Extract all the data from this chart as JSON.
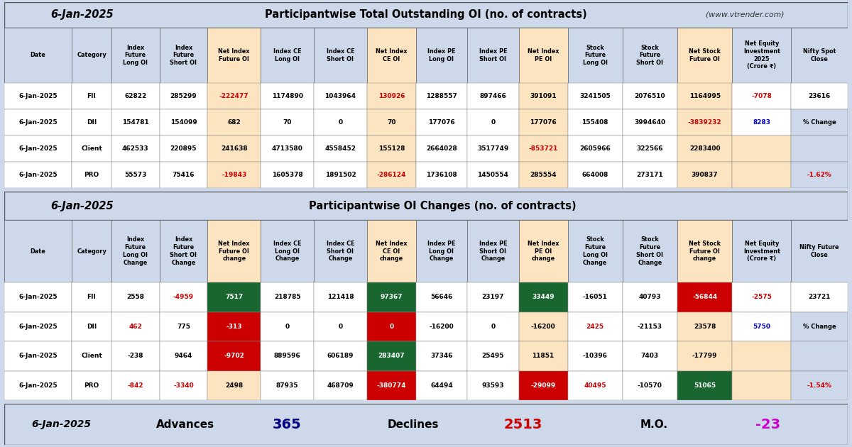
{
  "title1_date": "6-Jan-2025",
  "title1_main": "Participantwise Total Outstanding OI (no. of contracts)",
  "title1_website": "  (www.vtrender.com)",
  "title2_date": "6-Jan-2025",
  "title2_main": "Participantwise OI Changes (no. of contracts)",
  "footer_date": "6-Jan-2025",
  "footer_advances_label": "Advances",
  "footer_advances_val": "365",
  "footer_declines_label": "Declines",
  "footer_declines_val": "2513",
  "footer_mo_label": "M.O.",
  "footer_mo_val": "-23",
  "bg_color": "#cdd9ea",
  "white": "#ffffff",
  "net_col_bg": "#fce4c0",
  "negative_color": "#cc0000",
  "blue_color": "#0000cc",
  "magenta_color": "#cc00cc",
  "green_bg": "#1a6630",
  "red_bg": "#cc0000",
  "dark_navy": "#000080",
  "table1_headers": [
    "Date",
    "Category",
    "Index\nFuture\nLong OI",
    "Index\nFuture\nShort OI",
    "Net Index\nFuture OI",
    "Index CE\nLong OI",
    "Index CE\nShort OI",
    "Net Index\nCE OI",
    "Index PE\nLong OI",
    "Index PE\nShort OI",
    "Net Index\nPE OI",
    "Stock\nFuture\nLong OI",
    "Stock\nFuture\nShort OI",
    "Net Stock\nFuture OI",
    "Net Equity\nInvestment\n2025\n(Crore ₹)",
    "Nifty Spot\nClose"
  ],
  "table1_data": [
    [
      "6-Jan-2025",
      "FII",
      "62822",
      "285299",
      "-222477",
      "1174890",
      "1043964",
      "130926",
      "1288557",
      "897466",
      "391091",
      "3241505",
      "2076510",
      "1164995",
      "-7078",
      "23616"
    ],
    [
      "6-Jan-2025",
      "DII",
      "154781",
      "154099",
      "682",
      "70",
      "0",
      "70",
      "177076",
      "0",
      "177076",
      "155408",
      "3994640",
      "-3839232",
      "8283",
      ""
    ],
    [
      "6-Jan-2025",
      "Client",
      "462533",
      "220895",
      "241638",
      "4713580",
      "4558452",
      "155128",
      "2664028",
      "3517749",
      "-853721",
      "2605966",
      "322566",
      "2283400",
      "",
      ""
    ],
    [
      "6-Jan-2025",
      "PRO",
      "55573",
      "75416",
      "-19843",
      "1605378",
      "1891502",
      "-286124",
      "1736108",
      "1450554",
      "285554",
      "664008",
      "273171",
      "390837",
      "",
      ""
    ]
  ],
  "table1_net_cols": [
    4,
    7,
    10,
    13
  ],
  "table1_neg_text": [
    [
      0,
      4
    ],
    [
      3,
      4
    ],
    [
      0,
      7
    ],
    [
      3,
      7
    ],
    [
      2,
      10
    ],
    [
      0,
      14
    ],
    [
      1,
      13
    ]
  ],
  "table1_blue_text": [
    [
      1,
      14
    ]
  ],
  "table1_pct_val": "-1.62%",
  "table2_headers": [
    "Date",
    "Category",
    "Index\nFuture\nLong OI\nChange",
    "Index\nFuture\nShort OI\nChange",
    "Net Index\nFuture OI\nchange",
    "Index CE\nLong OI\nChange",
    "Index CE\nShort OI\nChange",
    "Net Index\nCE OI\nchange",
    "Index PE\nLong OI\nChange",
    "Index PE\nShort OI\nChange",
    "Net Index\nPE OI\nchange",
    "Stock\nFuture\nLong OI\nChange",
    "Stock\nFuture\nShort OI\nChange",
    "Net Stock\nFuture OI\nchange",
    "Net Equity\nInvestment\n(Crore ₹)",
    "Nifty Future\nClose"
  ],
  "table2_data": [
    [
      "6-Jan-2025",
      "FII",
      "2558",
      "-4959",
      "7517",
      "218785",
      "121418",
      "97367",
      "56646",
      "23197",
      "33449",
      "-16051",
      "40793",
      "-56844",
      "-2575",
      "23721"
    ],
    [
      "6-Jan-2025",
      "DII",
      "462",
      "775",
      "-313",
      "0",
      "0",
      "0",
      "-16200",
      "0",
      "-16200",
      "2425",
      "-21153",
      "23578",
      "5750",
      ""
    ],
    [
      "6-Jan-2025",
      "Client",
      "-238",
      "9464",
      "-9702",
      "889596",
      "606189",
      "283407",
      "37346",
      "25495",
      "11851",
      "-10396",
      "7403",
      "-17799",
      "",
      ""
    ],
    [
      "6-Jan-2025",
      "PRO",
      "-842",
      "-3340",
      "2498",
      "87935",
      "468709",
      "-380774",
      "64494",
      "93593",
      "-29099",
      "40495",
      "-10570",
      "51065",
      "",
      ""
    ]
  ],
  "table2_net_cols": [
    4,
    7,
    10,
    13
  ],
  "table2_green_bg": [
    [
      0,
      4
    ],
    [
      0,
      7
    ],
    [
      0,
      10
    ],
    [
      2,
      7
    ],
    [
      3,
      13
    ]
  ],
  "table2_red_bg": [
    [
      1,
      4
    ],
    [
      2,
      4
    ],
    [
      1,
      7
    ],
    [
      3,
      7
    ],
    [
      3,
      10
    ],
    [
      0,
      13
    ]
  ],
  "table2_neg_text": [
    [
      0,
      3
    ],
    [
      1,
      2
    ],
    [
      3,
      2
    ],
    [
      3,
      3
    ],
    [
      3,
      11
    ],
    [
      0,
      14
    ],
    [
      1,
      11
    ]
  ],
  "table2_blue_text": [
    [
      1,
      14
    ]
  ],
  "table2_pct_val": "-1.54%"
}
